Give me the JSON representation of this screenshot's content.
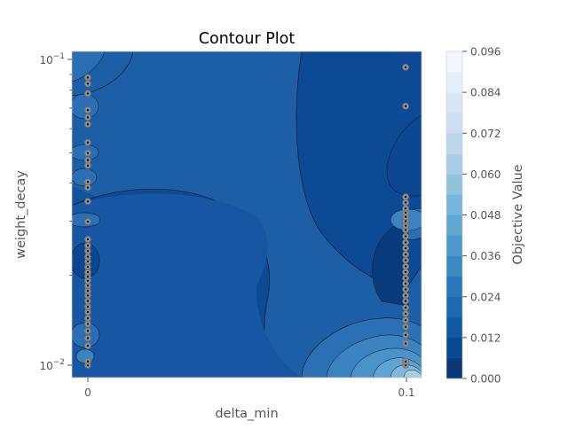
{
  "chart_data": {
    "type": "contour",
    "title": "Contour Plot",
    "xlabel": "delta_min",
    "ylabel": "weight_decay",
    "x_ticks": [
      {
        "value": 0,
        "label": "0"
      },
      {
        "value": 0.1,
        "label": "0.1"
      }
    ],
    "y_scale": "log",
    "y_ticks": [
      {
        "value": 0.01,
        "base": "10",
        "exp": "−2"
      },
      {
        "value": 0.1,
        "base": "10",
        "exp": "−1"
      }
    ],
    "xlim": [
      -0.005,
      0.105
    ],
    "ylim": [
      0.0093,
      0.107
    ],
    "colorbar": {
      "label": "Objective Value",
      "ticks": [
        "0.000",
        "0.012",
        "0.024",
        "0.036",
        "0.048",
        "0.060",
        "0.072",
        "0.084",
        "0.096"
      ],
      "min": 0.0,
      "max": 0.096,
      "levels": 16,
      "colormap": "Blues_r"
    },
    "trials": {
      "x0_weight_decays": [
        0.0102,
        0.0105,
        0.0118,
        0.0125,
        0.0132,
        0.0139,
        0.0145,
        0.0152,
        0.0158,
        0.0165,
        0.0172,
        0.0178,
        0.0185,
        0.0192,
        0.0198,
        0.0205,
        0.0213,
        0.0222,
        0.023,
        0.024,
        0.025,
        0.0262,
        0.0299,
        0.0348,
        0.0386,
        0.0403,
        0.0455,
        0.0474,
        0.05,
        0.0541,
        0.062,
        0.0653,
        0.069,
        0.0781,
        0.084,
        0.088
      ],
      "x1_weight_decays": [
        0.0102,
        0.0105,
        0.012,
        0.0128,
        0.0136,
        0.0143,
        0.015,
        0.0157,
        0.0165,
        0.0172,
        0.018,
        0.0188,
        0.0196,
        0.0205,
        0.0214,
        0.0224,
        0.0234,
        0.0245,
        0.0256,
        0.0268,
        0.0281,
        0.029,
        0.03,
        0.031,
        0.032,
        0.033,
        0.0345,
        0.036,
        0.071,
        0.095
      ]
    }
  }
}
